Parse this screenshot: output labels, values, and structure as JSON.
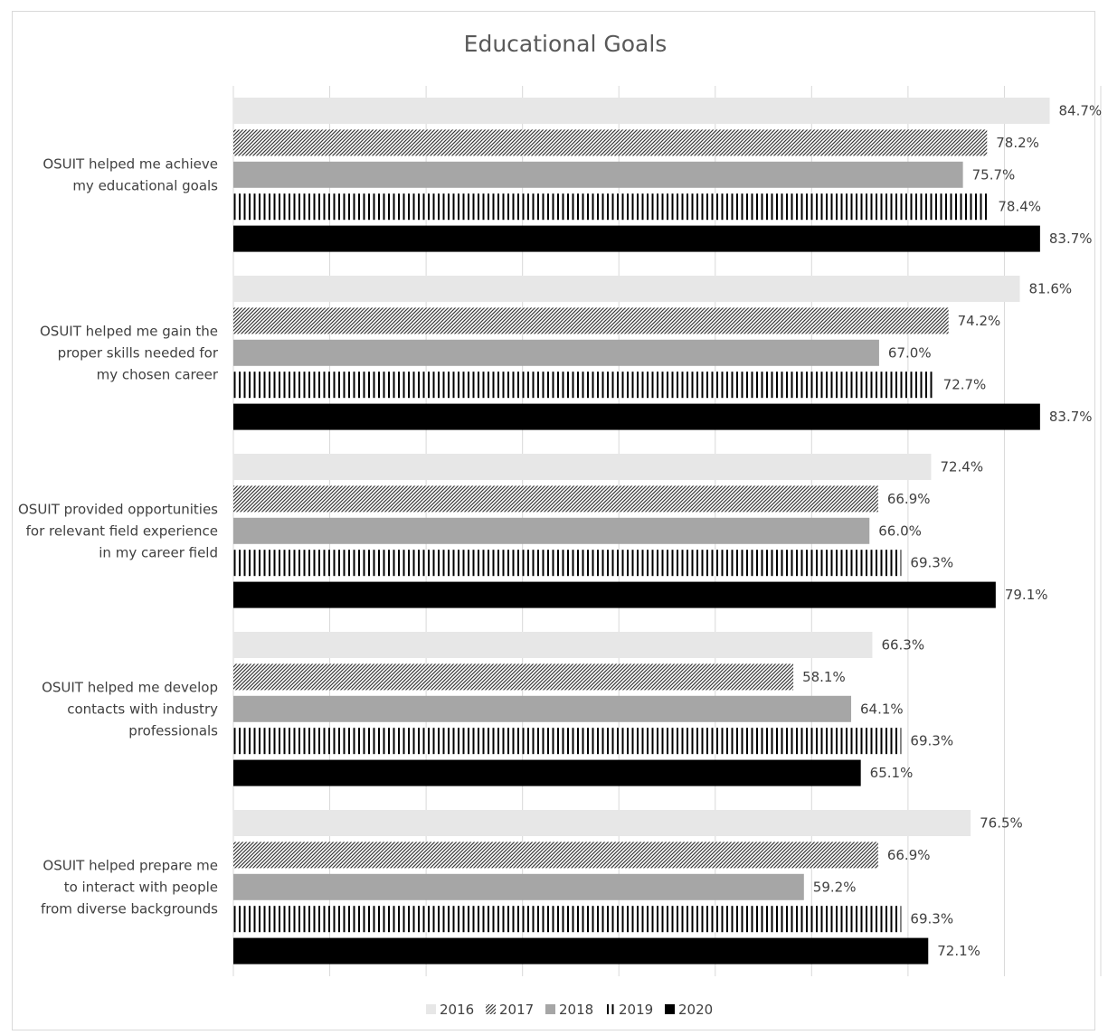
{
  "chart_data": {
    "type": "bar",
    "orientation": "horizontal",
    "title": "Educational Goals",
    "categories": [
      [
        "OSUIT helped me achieve",
        "my educational goals"
      ],
      [
        "OSUIT helped me gain the",
        "proper skills needed for",
        "my chosen career"
      ],
      [
        "OSUIT provided opportunities",
        "for relevant field experience",
        "in my career field"
      ],
      [
        "OSUIT helped me develop",
        "contacts with industry",
        "professionals"
      ],
      [
        "OSUIT helped prepare me",
        "to interact with people",
        "from diverse backgrounds"
      ]
    ],
    "series": [
      {
        "name": "2016",
        "pattern": "solid",
        "color": "#e7e7e7",
        "values": [
          84.7,
          81.6,
          72.4,
          66.3,
          76.5
        ]
      },
      {
        "name": "2017",
        "pattern": "diagonal-hatch",
        "color": "#595959",
        "values": [
          78.2,
          74.2,
          66.9,
          58.1,
          66.9
        ]
      },
      {
        "name": "2018",
        "pattern": "solid",
        "color": "#a6a6a6",
        "values": [
          75.7,
          67.0,
          66.0,
          64.1,
          59.2
        ]
      },
      {
        "name": "2019",
        "pattern": "vertical-lines",
        "color": "#000000",
        "values": [
          78.4,
          72.7,
          69.3,
          69.3,
          69.3
        ]
      },
      {
        "name": "2020",
        "pattern": "solid",
        "color": "#000000",
        "values": [
          83.7,
          83.7,
          79.1,
          65.1,
          72.1
        ]
      }
    ],
    "value_format": "percent_1dp",
    "xlim": [
      0,
      90
    ],
    "grid": "vertical",
    "legend": "bottom"
  }
}
